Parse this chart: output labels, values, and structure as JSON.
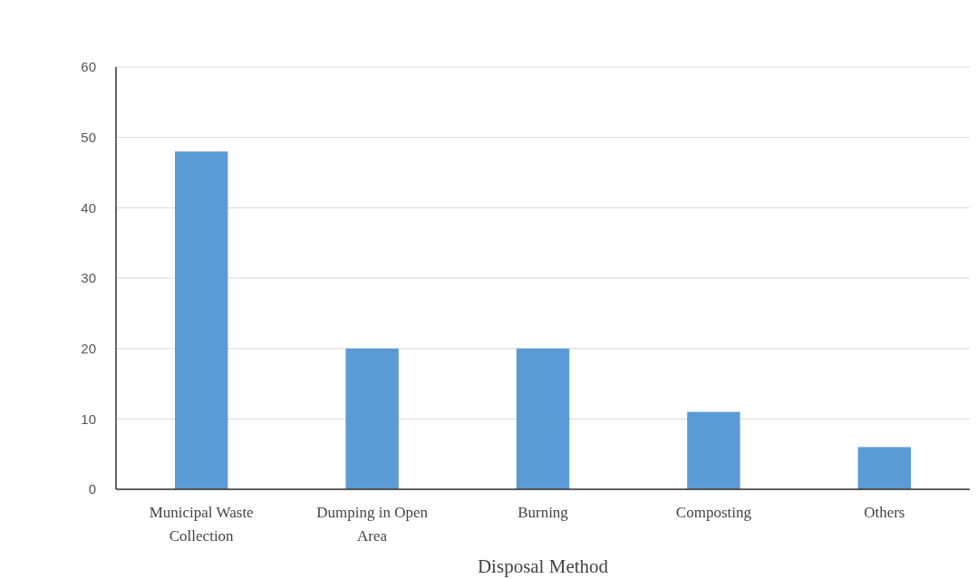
{
  "chart_data": {
    "type": "bar",
    "xlabel": "Disposal Method",
    "categories": [
      "Municipal Waste Collection",
      "Dumping in Open Area",
      "Burning",
      "Composting",
      "Others"
    ],
    "values": [
      48,
      20,
      20,
      11,
      6
    ],
    "color": "#5b9bd5",
    "ylim": [
      0,
      60
    ],
    "yticks": [
      0,
      10,
      20,
      30,
      40,
      50,
      60
    ],
    "grid": "y"
  }
}
